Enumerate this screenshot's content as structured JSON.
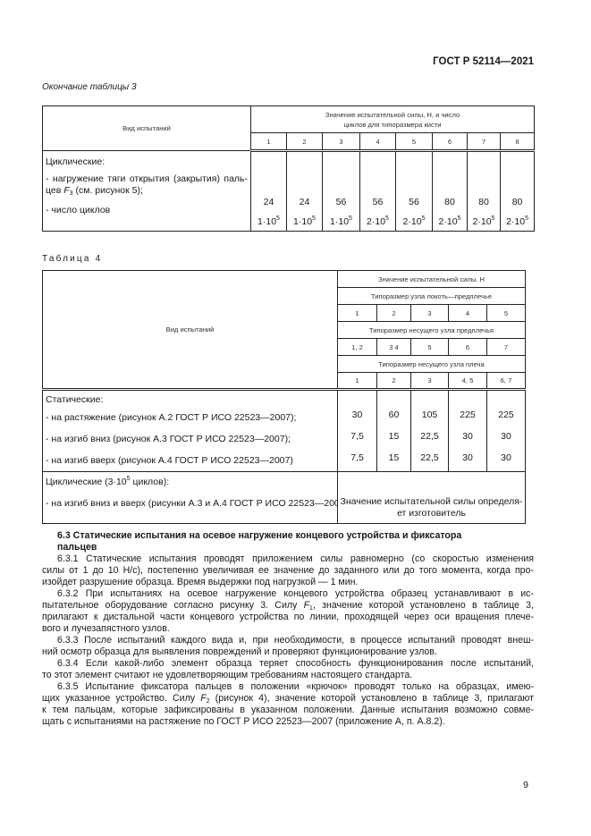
{
  "header": {
    "doc_code": "ГОСТ Р 52114—2021"
  },
  "table3": {
    "caption": "Окончание таблицы 3",
    "col_header": "Вид испытаний",
    "group_header": "Значение испытательной силы, Н, и число циклов для типоразмера кисти",
    "sizes": [
      "1",
      "2",
      "3",
      "4",
      "5",
      "6",
      "7",
      "8"
    ],
    "section": "Циклические:",
    "row1_label_line1": "- нагружение тяги открытия (закрытия) паль-",
    "row1_label_line2_pre": "цев ",
    "row1_label_F": "F",
    "row1_label_sub": "3",
    "row1_label_line2_post": " (см. рисунок 5);",
    "row1_values": [
      "24",
      "24",
      "56",
      "56",
      "56",
      "80",
      "80",
      "80"
    ],
    "row2_label": "- число циклов",
    "row2_values": [
      [
        "1·10",
        "5"
      ],
      [
        "1·10",
        "5"
      ],
      [
        "1·10",
        "5"
      ],
      [
        "2·10",
        "5"
      ],
      [
        "2·10",
        "5"
      ],
      [
        "2·10",
        "5"
      ],
      [
        "2·10",
        "5"
      ],
      [
        "2·10",
        "5"
      ]
    ]
  },
  "table4": {
    "caption": "Таблица 4",
    "col_header": "Вид испытаний",
    "h1": "Значение испытательной силы. Н",
    "h2": "Типоразмер узла локоть—предплечье",
    "h2_sizes": [
      "1",
      "2",
      "3",
      "4",
      "5"
    ],
    "h3": "Типоразмер несущего узла предплечья",
    "h3_sizes": [
      "1, 2",
      "3 4",
      "5",
      "6",
      "7"
    ],
    "h4": "Типоразмер несущего узла плеча",
    "h4_sizes": [
      "1",
      "2",
      "3",
      "4, 5",
      "6, 7"
    ],
    "static_label": "Статические:",
    "static_rows": [
      {
        "label": "- на растяжение (рисунок А.2 ГОСТ Р ИСО 22523—2007);",
        "values": [
          "30",
          "60",
          "105",
          "225",
          "225"
        ]
      },
      {
        "label": "- на изгиб вниз (рисунок А.3 ГОСТ Р ИСО 22523—2007);",
        "values": [
          "7,5",
          "15",
          "22,5",
          "30",
          "30"
        ]
      },
      {
        "label": "- на изгиб вверх (рисунок А.4 ГОСТ Р ИСО 22523—2007)",
        "values": [
          "7,5",
          "15",
          "22,5",
          "30",
          "30"
        ]
      }
    ],
    "cyclic_label_pre": "Циклические (3·10",
    "cyclic_label_sup": "5",
    "cyclic_label_post": " циклов):",
    "cyclic_row_label": "- на изгиб вниз и вверх (рисунки А.3 и А.4 ГОСТ Р ИСО 22523—2007)",
    "cyclic_value_line1": "Значение испытательной силы определя-",
    "cyclic_value_line2": "ет изготовитель"
  },
  "section": {
    "lines": [
      {
        "cls": "h",
        "parts": [
          [
            "6.3 Статические испытания на осевое нагружение концевого устройства и фиксатора"
          ]
        ]
      },
      {
        "cls": "h",
        "parts": [
          [
            "пальцев"
          ]
        ]
      },
      {
        "cls": "ind",
        "parts": [
          [
            "6.3.1 Статические испытания проводят приложением силы равномерно (со скоростью изменения"
          ]
        ]
      },
      {
        "cls": "",
        "parts": [
          [
            "силы от 1 до 10 Н/с), постепенно увеличивая ее значение до заданного или до того момента, когда про-"
          ]
        ]
      },
      {
        "cls": "last",
        "parts": [
          [
            "изойдет разрушение образца. Время выдержки под нагрузкой — 1 мин."
          ]
        ]
      },
      {
        "cls": "ind",
        "parts": [
          [
            "6.3.2 При испытаниях на осевое нагружение концевого устройства образец устанавливают в ис-"
          ]
        ]
      },
      {
        "cls": "",
        "parts": [
          [
            "пытательное оборудование согласно рисунку 3. Силу "
          ],
          [
            "F",
            "i"
          ],
          [
            "1",
            "sub"
          ],
          [
            ", значение которой установлено в таблице 3,"
          ]
        ]
      },
      {
        "cls": "",
        "parts": [
          [
            "прилагают к дистальной части концевого устройства по линии, проходящей через оси вращения плече-"
          ]
        ]
      },
      {
        "cls": "last",
        "parts": [
          [
            "вого и лучезапястного узлов."
          ]
        ]
      },
      {
        "cls": "ind",
        "parts": [
          [
            "6.3.3 После испытаний каждого вида и, при необходимости, в процессе испытаний проводят внеш-"
          ]
        ]
      },
      {
        "cls": "last",
        "parts": [
          [
            "ний осмотр образца для выявления повреждений и проверяют функционирование узлов."
          ]
        ]
      },
      {
        "cls": "ind",
        "parts": [
          [
            "6.3.4 Если какой-либо элемент образца теряет способность функционирования после испытаний,"
          ]
        ]
      },
      {
        "cls": "last",
        "parts": [
          [
            "то этот элемент считают не удовлетворяющим требованиям настоящего стандарта."
          ]
        ]
      },
      {
        "cls": "ind",
        "parts": [
          [
            "6.3.5 Испытание фиксатора пальцев в положении «крючок» проводят только на образцах, имею-"
          ]
        ]
      },
      {
        "cls": "",
        "parts": [
          [
            "щих указанное устройство. Силу "
          ],
          [
            "F",
            "i"
          ],
          [
            "2",
            "sub"
          ],
          [
            " (рисунок 4), значение которой установлено в таблице 3, прилагают"
          ]
        ]
      },
      {
        "cls": "",
        "parts": [
          [
            "к тем пальцам, которые зафиксированы в указанном положении. Данные испытания возможно совме-"
          ]
        ]
      },
      {
        "cls": "last",
        "parts": [
          [
            "щать с испытаниями на растяжение по ГОСТ Р ИСО 22523—2007 (приложение А, п. А.8.2)."
          ]
        ]
      }
    ]
  },
  "footer": {
    "page_number": "9"
  }
}
